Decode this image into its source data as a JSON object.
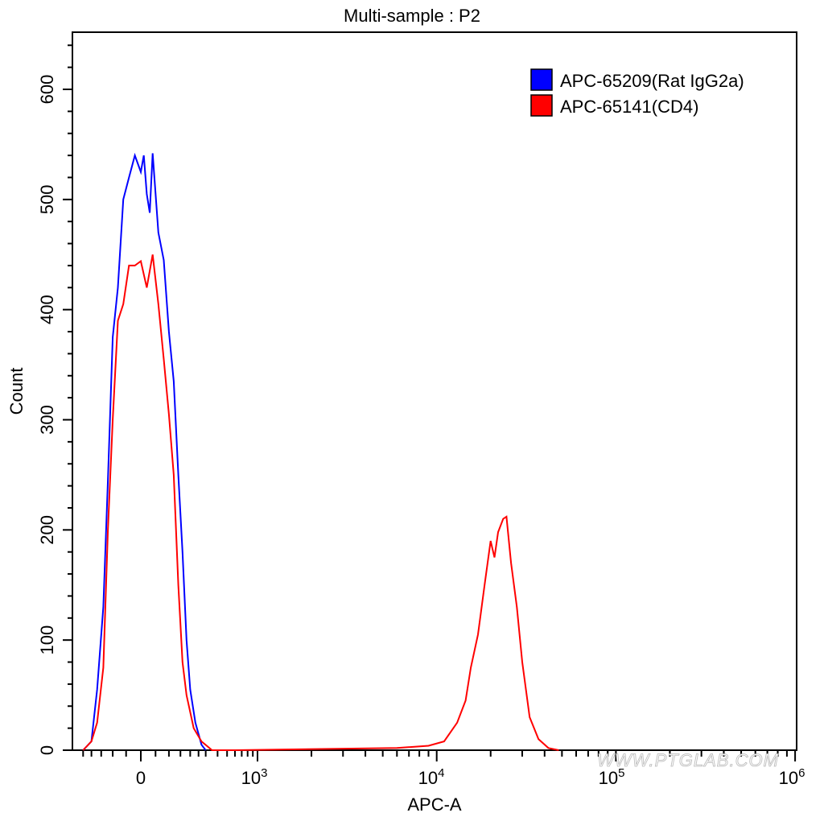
{
  "chart_data": {
    "type": "histogram-overlay",
    "title": "Multi-sample : P2",
    "xlabel": "APC-A",
    "ylabel": "Count",
    "xscale": "biexponential (logicle)",
    "ylim": [
      0,
      650
    ],
    "yticks": [
      0,
      100,
      200,
      300,
      400,
      500,
      600
    ],
    "xtick_labels": [
      "0",
      "10^3",
      "10^4",
      "10^5",
      "10^6"
    ],
    "grid": false,
    "legend_position": "top-right",
    "series": [
      {
        "name": "APC-65209(Rat IgG2a)",
        "color": "#0000ff",
        "description": "single negative peak centered near 0",
        "peak_x": "≈0",
        "peak_count": 542,
        "points": [
          [
            -250,
            0
          ],
          [
            -200,
            8
          ],
          [
            -170,
            55
          ],
          [
            -140,
            130
          ],
          [
            -120,
            245
          ],
          [
            -100,
            375
          ],
          [
            -80,
            420
          ],
          [
            -60,
            500
          ],
          [
            -40,
            520
          ],
          [
            -20,
            540
          ],
          [
            0,
            525
          ],
          [
            10,
            540
          ],
          [
            20,
            505
          ],
          [
            30,
            488
          ],
          [
            40,
            542
          ],
          [
            60,
            470
          ],
          [
            80,
            445
          ],
          [
            100,
            380
          ],
          [
            120,
            335
          ],
          [
            140,
            250
          ],
          [
            160,
            180
          ],
          [
            180,
            100
          ],
          [
            200,
            55
          ],
          [
            230,
            25
          ],
          [
            270,
            5
          ],
          [
            300,
            0
          ]
        ]
      },
      {
        "name": "APC-65141(CD4)",
        "color": "#ff0000",
        "description": "bimodal: negative peak near 0 and positive peak near 2.5×10^4",
        "peak_counts": [
          450,
          212
        ],
        "points": [
          [
            -250,
            0
          ],
          [
            -200,
            8
          ],
          [
            -170,
            25
          ],
          [
            -140,
            75
          ],
          [
            -120,
            200
          ],
          [
            -100,
            300
          ],
          [
            -80,
            390
          ],
          [
            -60,
            405
          ],
          [
            -40,
            440
          ],
          [
            -20,
            440
          ],
          [
            0,
            444
          ],
          [
            20,
            420
          ],
          [
            40,
            450
          ],
          [
            60,
            405
          ],
          [
            80,
            355
          ],
          [
            100,
            305
          ],
          [
            120,
            250
          ],
          [
            140,
            150
          ],
          [
            160,
            80
          ],
          [
            180,
            50
          ],
          [
            220,
            20
          ],
          [
            270,
            8
          ],
          [
            350,
            0
          ],
          [
            600,
            0
          ],
          [
            6000,
            2
          ],
          [
            9000,
            4
          ],
          [
            11000,
            8
          ],
          [
            13000,
            25
          ],
          [
            14500,
            45
          ],
          [
            15500,
            75
          ],
          [
            17000,
            105
          ],
          [
            18500,
            150
          ],
          [
            20000,
            190
          ],
          [
            21000,
            175
          ],
          [
            22000,
            198
          ],
          [
            23500,
            210
          ],
          [
            24500,
            212
          ],
          [
            26000,
            170
          ],
          [
            28000,
            130
          ],
          [
            30000,
            80
          ],
          [
            33000,
            30
          ],
          [
            37000,
            10
          ],
          [
            42000,
            2
          ],
          [
            48000,
            0
          ]
        ]
      }
    ]
  },
  "legend": {
    "items": [
      {
        "label": "APC-65209(Rat IgG2a)",
        "color": "#0000ff"
      },
      {
        "label": "APC-65141(CD4)",
        "color": "#ff0000"
      }
    ]
  },
  "axes": {
    "y_ticks": [
      "0",
      "100",
      "200",
      "300",
      "400",
      "500",
      "600"
    ],
    "x_ticks": [
      {
        "base": "0",
        "exp": ""
      },
      {
        "base": "10",
        "exp": "3"
      },
      {
        "base": "10",
        "exp": "4"
      },
      {
        "base": "10",
        "exp": "5"
      },
      {
        "base": "10",
        "exp": "6"
      }
    ]
  },
  "watermark": "WWW.PTGLAB.COM"
}
